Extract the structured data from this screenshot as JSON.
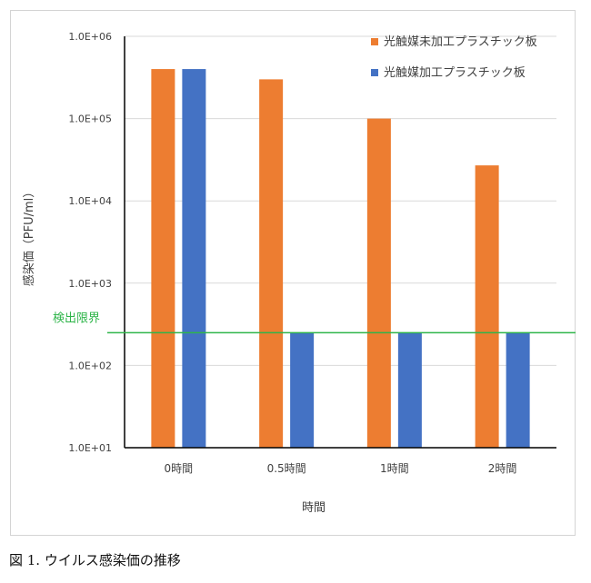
{
  "chart_data": {
    "type": "bar",
    "y_scale": "log",
    "ylim": [
      10,
      1000000
    ],
    "y_ticks": [
      "1.0E+01",
      "1.0E+02",
      "1.0E+03",
      "1.0E+04",
      "1.0E+05",
      "1.0E+06"
    ],
    "categories": [
      "0時間",
      "0.5時間",
      "1時間",
      "2時間"
    ],
    "series": [
      {
        "name": "光触媒未加工プラスチック板",
        "color": "#ed7d31",
        "values": [
          400000,
          300000,
          100000,
          27000
        ]
      },
      {
        "name": "光触媒加工プラスチック板",
        "color": "#4472c4",
        "values": [
          400000,
          250,
          250,
          250
        ]
      }
    ],
    "xlabel": "時間",
    "ylabel": "感染価（PFU/ml）",
    "gridlines": true,
    "legend_position": "top-right",
    "annotations": [
      {
        "label": "検出限界",
        "y": 250,
        "color": "#2fb54a"
      }
    ]
  },
  "caption": "図 1.  ウイルス感染価の推移"
}
